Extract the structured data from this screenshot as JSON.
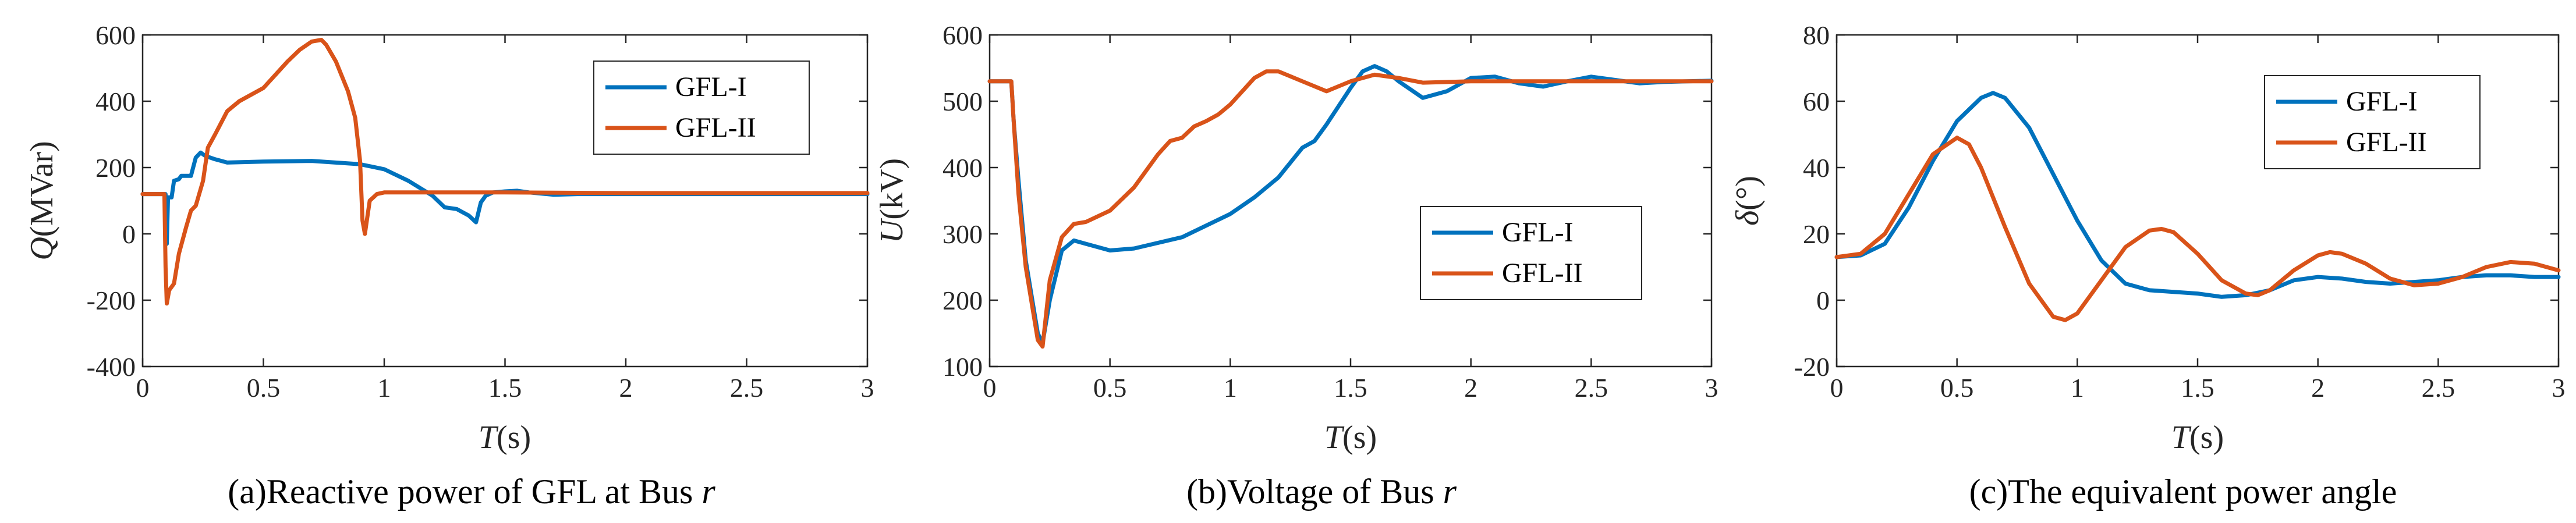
{
  "colors": {
    "series1": "#0072BD",
    "series2": "#D95319",
    "axis": "#262626"
  },
  "chart_data": [
    {
      "type": "line",
      "caption": {
        "pre": "(a)Reactive power of GFL at Bus ",
        "var": "r"
      },
      "xlabel": {
        "var": "T",
        "unit": "(s)"
      },
      "ylabel": {
        "var": "Q",
        "unit": "(MVar)"
      },
      "xlim": [
        0,
        3
      ],
      "ylim": [
        -400,
        600
      ],
      "xticks": [
        0,
        0.5,
        1,
        1.5,
        2,
        2.5,
        3
      ],
      "xtick_labels": [
        "0",
        "0.5",
        "1",
        "1.5",
        "2",
        "2.5",
        "3"
      ],
      "yticks": [
        -400,
        -200,
        0,
        200,
        400,
        600
      ],
      "ytick_labels": [
        "-400",
        "-200",
        "0",
        "200",
        "400",
        "600"
      ],
      "legend": {
        "position": "top-right",
        "entries": [
          "GFL-I",
          "GFL-II"
        ]
      },
      "series": [
        {
          "name": "GFL-I",
          "x": [
            0,
            0.095,
            0.1,
            0.105,
            0.12,
            0.13,
            0.15,
            0.16,
            0.2,
            0.22,
            0.24,
            0.26,
            0.3,
            0.35,
            0.5,
            0.7,
            0.9,
            1.0,
            1.1,
            1.2,
            1.25,
            1.3,
            1.35,
            1.38,
            1.4,
            1.42,
            1.45,
            1.5,
            1.55,
            1.6,
            1.7,
            1.8,
            2.0,
            2.5,
            3.0
          ],
          "y": [
            120,
            120,
            -30,
            110,
            110,
            160,
            165,
            175,
            175,
            230,
            245,
            235,
            225,
            215,
            218,
            220,
            210,
            195,
            160,
            115,
            80,
            75,
            55,
            35,
            95,
            115,
            125,
            128,
            130,
            125,
            118,
            120,
            120,
            120,
            120
          ]
        },
        {
          "name": "GFL-II",
          "x": [
            0,
            0.09,
            0.095,
            0.1,
            0.11,
            0.13,
            0.15,
            0.18,
            0.2,
            0.22,
            0.25,
            0.27,
            0.3,
            0.35,
            0.4,
            0.5,
            0.55,
            0.6,
            0.65,
            0.7,
            0.74,
            0.76,
            0.8,
            0.85,
            0.88,
            0.9,
            0.91,
            0.92,
            0.94,
            0.97,
            1.0,
            1.1,
            1.5,
            2.0,
            2.5,
            3.0
          ],
          "y": [
            120,
            120,
            -100,
            -210,
            -170,
            -150,
            -60,
            20,
            70,
            85,
            160,
            260,
            300,
            370,
            400,
            440,
            480,
            520,
            555,
            580,
            585,
            570,
            520,
            430,
            350,
            220,
            40,
            0,
            100,
            120,
            125,
            125,
            125,
            123,
            123,
            123
          ]
        }
      ]
    },
    {
      "type": "line",
      "caption": {
        "pre": "(b)Voltage of Bus ",
        "var": "r"
      },
      "xlabel": {
        "var": "T",
        "unit": "(s)"
      },
      "ylabel": {
        "var": "U",
        "unit": "(kV)"
      },
      "xlim": [
        0,
        3
      ],
      "ylim": [
        100,
        600
      ],
      "xticks": [
        0,
        0.5,
        1,
        1.5,
        2,
        2.5,
        3
      ],
      "xtick_labels": [
        "0",
        "0.5",
        "1",
        "1.5",
        "2",
        "2.5",
        "3"
      ],
      "yticks": [
        100,
        200,
        300,
        400,
        500,
        600
      ],
      "ytick_labels": [
        "100",
        "200",
        "300",
        "400",
        "500",
        "600"
      ],
      "legend": {
        "position": "center-right",
        "entries": [
          "GFL-I",
          "GFL-II"
        ]
      },
      "series": [
        {
          "name": "GFL-I",
          "x": [
            0,
            0.09,
            0.1,
            0.12,
            0.15,
            0.2,
            0.22,
            0.25,
            0.3,
            0.35,
            0.4,
            0.5,
            0.6,
            0.8,
            1.0,
            1.1,
            1.2,
            1.3,
            1.35,
            1.4,
            1.5,
            1.55,
            1.6,
            1.65,
            1.7,
            1.8,
            1.9,
            2.0,
            2.1,
            2.2,
            2.3,
            2.4,
            2.5,
            2.6,
            2.7,
            2.8,
            2.9,
            3.0
          ],
          "y": [
            530,
            530,
            470,
            380,
            260,
            150,
            135,
            200,
            275,
            290,
            285,
            275,
            278,
            295,
            330,
            355,
            385,
            430,
            440,
            465,
            520,
            545,
            553,
            545,
            530,
            505,
            515,
            535,
            537,
            527,
            522,
            530,
            537,
            532,
            527,
            529,
            530,
            531
          ]
        },
        {
          "name": "GFL-II",
          "x": [
            0,
            0.09,
            0.1,
            0.12,
            0.15,
            0.2,
            0.22,
            0.25,
            0.3,
            0.35,
            0.4,
            0.5,
            0.6,
            0.7,
            0.75,
            0.8,
            0.85,
            0.9,
            0.95,
            1.0,
            1.05,
            1.1,
            1.15,
            1.2,
            1.3,
            1.4,
            1.5,
            1.6,
            1.7,
            1.8,
            2.0,
            2.2,
            2.5,
            2.8,
            3.0
          ],
          "y": [
            530,
            530,
            470,
            360,
            250,
            140,
            130,
            230,
            295,
            315,
            318,
            335,
            370,
            420,
            440,
            445,
            462,
            470,
            480,
            495,
            515,
            535,
            545,
            545,
            530,
            515,
            530,
            540,
            535,
            528,
            530,
            530,
            530,
            530,
            530
          ]
        }
      ]
    },
    {
      "type": "line",
      "caption": {
        "pre": "(c)The equivalent power angle",
        "var": ""
      },
      "xlabel": {
        "var": "T",
        "unit": "(s)"
      },
      "ylabel": {
        "var": "δ",
        "unit": "(°)"
      },
      "xlim": [
        0,
        3
      ],
      "ylim": [
        -20,
        80
      ],
      "xticks": [
        0,
        0.5,
        1,
        1.5,
        2,
        2.5,
        3
      ],
      "xtick_labels": [
        "0",
        "0.5",
        "1",
        "1.5",
        "2",
        "2.5",
        "3"
      ],
      "yticks": [
        -20,
        0,
        20,
        40,
        60,
        80
      ],
      "ytick_labels": [
        "-20",
        "0",
        "20",
        "40",
        "60",
        "80"
      ],
      "legend": {
        "position": "top-right",
        "entries": [
          "GFL-I",
          "GFL-II"
        ]
      },
      "series": [
        {
          "name": "GFL-I",
          "x": [
            0,
            0.1,
            0.2,
            0.3,
            0.4,
            0.5,
            0.6,
            0.65,
            0.7,
            0.8,
            0.9,
            1.0,
            1.1,
            1.2,
            1.3,
            1.4,
            1.5,
            1.6,
            1.7,
            1.8,
            1.9,
            2.0,
            2.1,
            2.2,
            2.3,
            2.4,
            2.5,
            2.6,
            2.7,
            2.8,
            2.9,
            3.0
          ],
          "y": [
            13,
            13.5,
            17,
            28,
            42,
            54,
            61,
            62.5,
            61,
            52,
            38,
            24,
            12,
            5,
            3,
            2.5,
            2,
            1,
            1.5,
            3,
            6,
            7,
            6.5,
            5.5,
            5,
            5.5,
            6,
            7,
            7.5,
            7.5,
            7,
            7
          ]
        },
        {
          "name": "GFL-II",
          "x": [
            0,
            0.1,
            0.2,
            0.3,
            0.4,
            0.5,
            0.55,
            0.6,
            0.7,
            0.8,
            0.9,
            0.95,
            1.0,
            1.1,
            1.2,
            1.3,
            1.35,
            1.4,
            1.5,
            1.6,
            1.7,
            1.75,
            1.8,
            1.9,
            2.0,
            2.05,
            2.1,
            2.2,
            2.3,
            2.4,
            2.5,
            2.6,
            2.7,
            2.8,
            2.9,
            3.0
          ],
          "y": [
            13,
            14,
            20,
            32,
            44,
            49,
            47,
            40,
            22,
            5,
            -5,
            -6,
            -4,
            6,
            16,
            21,
            21.5,
            20.5,
            14,
            6,
            2,
            1.5,
            3,
            9,
            13.5,
            14.5,
            14,
            11,
            6.5,
            4.5,
            5,
            7,
            10,
            11.5,
            11,
            9
          ]
        }
      ]
    }
  ]
}
